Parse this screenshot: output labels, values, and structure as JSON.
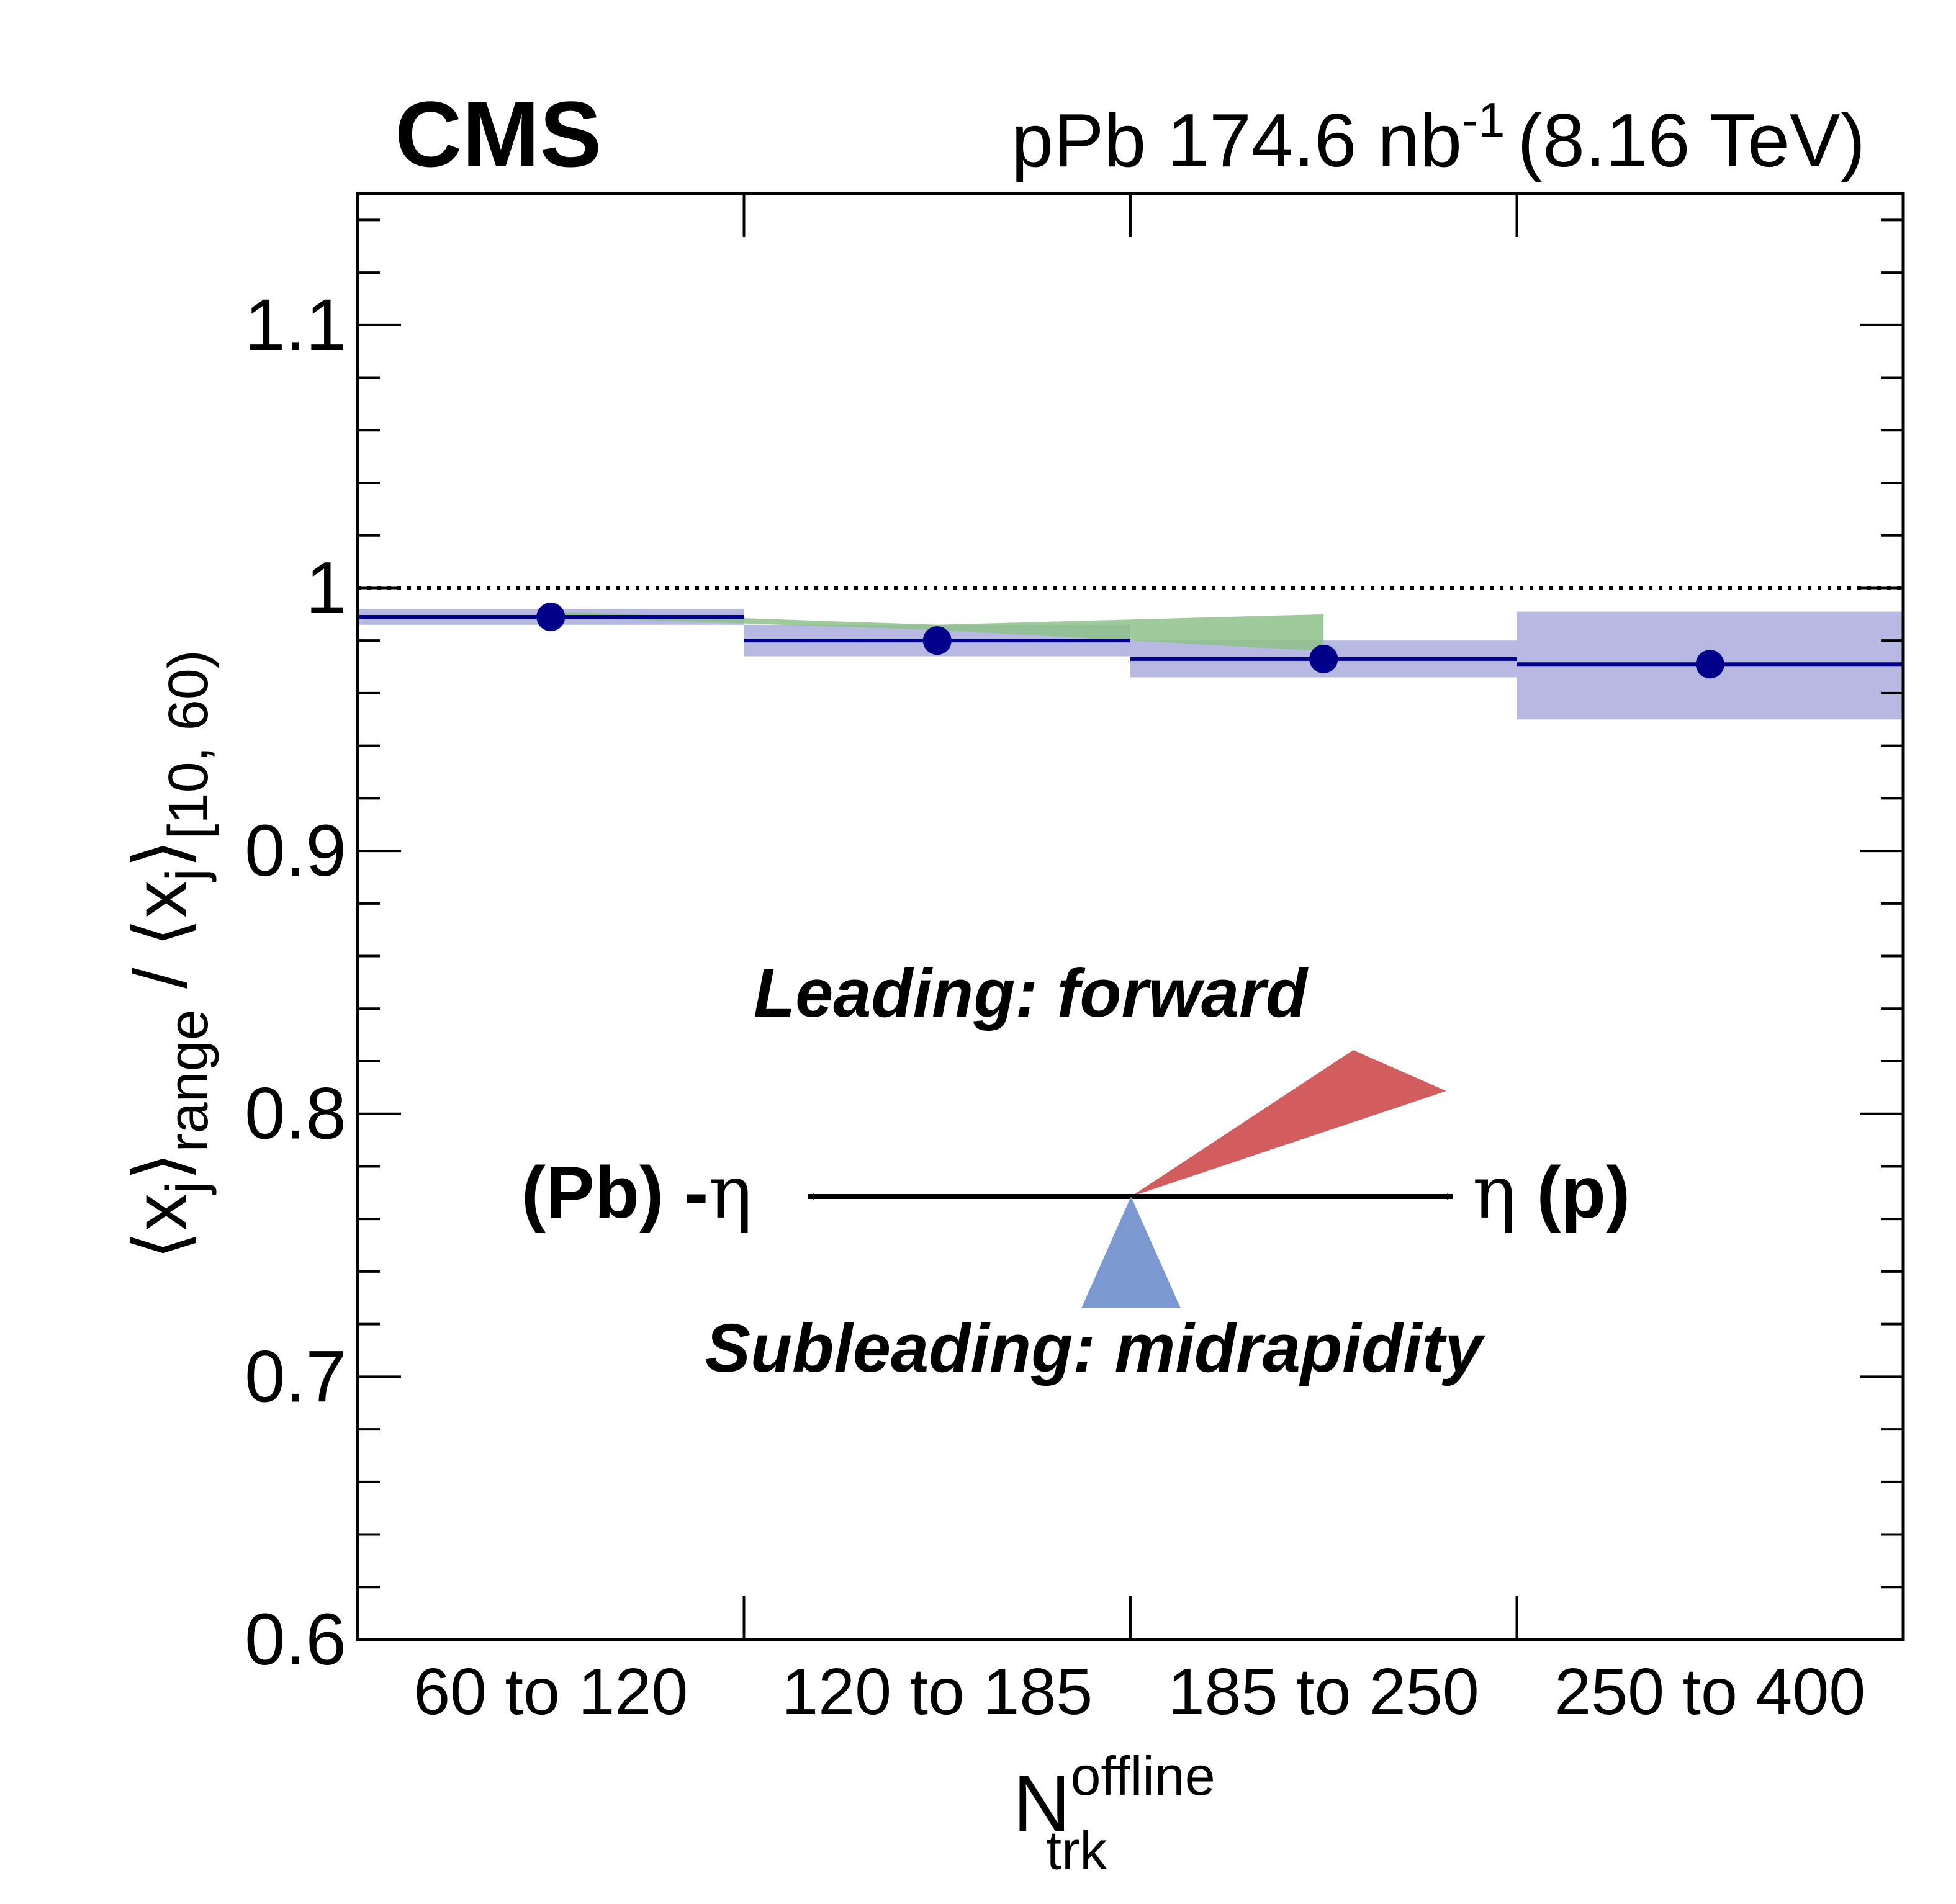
{
  "header": {
    "experiment": "CMS",
    "lumi_prefix": "pPb 174.6 nb",
    "lumi_exponent": "-1",
    "energy": "(8.16 TeV)"
  },
  "colors": {
    "marker": "#00008b",
    "stat_band": "#b7b9e3",
    "syst_band": "#8ec18a",
    "leading": "#d15d5f",
    "subleading": "#7b98d1"
  },
  "chart_data": {
    "type": "scatter",
    "title": "",
    "xlabel": "N",
    "xlabel_sup": "offline",
    "xlabel_sub": "trk",
    "ylabel_parts": {
      "open": "⟨x",
      "sub1": "j",
      "close1": "⟩",
      "range_sub": "range",
      "slash": " / ",
      "open2": "⟨x",
      "sub2": "j",
      "close2": "⟩",
      "ref_sub": "[10, 60)"
    },
    "categories": [
      "60 to 120",
      "120 to 185",
      "185 to 250",
      "250 to 400"
    ],
    "ylim": [
      0.6,
      1.15
    ],
    "yticks": [
      0.6,
      0.7,
      0.8,
      0.9,
      1,
      1.1
    ],
    "ytick_labels": [
      "0.6",
      "0.7",
      "0.8",
      "0.9",
      "1",
      "1.1"
    ],
    "reference_line": 1.0,
    "series": [
      {
        "values": [
          0.989,
          0.98,
          0.973,
          0.971
        ],
        "band_low": [
          0.986,
          0.974,
          0.966,
          0.95
        ],
        "band_high": [
          0.992,
          0.986,
          0.98,
          0.991
        ]
      }
    ],
    "green_band": {
      "x_at": [
        0.5,
        1.5,
        2.5
      ],
      "low": [
        0.989,
        0.984,
        0.976
      ],
      "high": [
        0.991,
        0.986,
        0.99
      ]
    },
    "annotations": {
      "leading": "Leading: forward",
      "subleading": "Subleading: midrapidity",
      "left_label": "(Pb) -",
      "left_eta": "η",
      "right_eta": "η",
      "right_label": " (p)"
    }
  }
}
